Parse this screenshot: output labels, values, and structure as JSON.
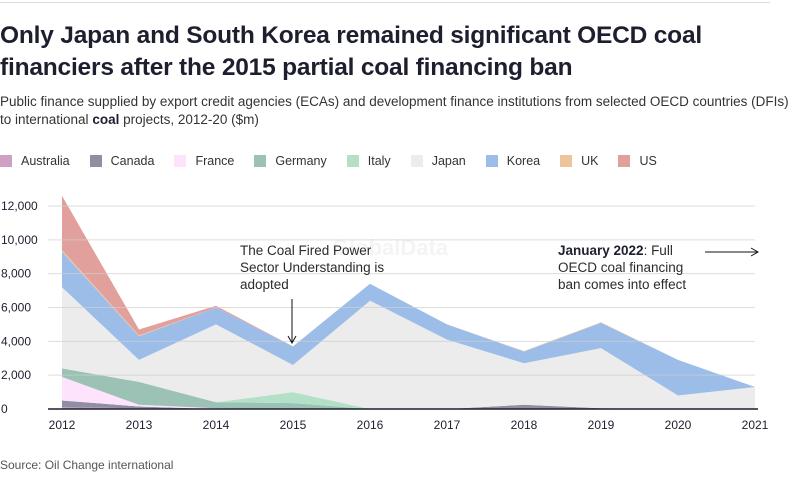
{
  "header": {
    "title": "Only Japan and South Korea remained significant OECD coal financiers after the 2015 partial coal financing ban",
    "subtitle_before": "Public finance supplied by export credit agencies (ECAs) and development finance institutions from selected OECD countries (DFIs) to international ",
    "subtitle_bold": "coal",
    "subtitle_after": " projects, 2012-20 ($m)"
  },
  "footer": {
    "source": "Source: Oil Change international"
  },
  "watermark": "GlobalData",
  "chart_data": {
    "type": "area",
    "stacked": true,
    "title": "Only Japan and South Korea remained significant OECD coal financiers after the 2015 partial coal financing ban",
    "xlabel": "",
    "ylabel": "$m",
    "x": [
      2012,
      2013,
      2014,
      2015,
      2016,
      2017,
      2018,
      2019,
      2020,
      2021
    ],
    "x_tick_labels": [
      "2012",
      "2013",
      "2014",
      "2015",
      "2016",
      "2017",
      "2018",
      "2019",
      "2020",
      "2021"
    ],
    "ylim": [
      0,
      12000
    ],
    "y_ticks": [
      0,
      2000,
      4000,
      6000,
      8000,
      10000,
      12000
    ],
    "y_tick_labels": [
      "0",
      "2,000",
      "4,000",
      "6,000",
      "8,000",
      "10,000",
      "12,000"
    ],
    "grid": true,
    "legend_position": "top-left",
    "series": [
      {
        "name": "Australia",
        "color": "#cf9fc4",
        "values": [
          100,
          50,
          0,
          0,
          0,
          0,
          0,
          0,
          0,
          0
        ]
      },
      {
        "name": "Canada",
        "color": "#8f8ea3",
        "values": [
          400,
          100,
          0,
          0,
          0,
          0,
          250,
          50,
          0,
          0
        ]
      },
      {
        "name": "France",
        "color": "#fde3fb",
        "values": [
          1400,
          100,
          50,
          0,
          0,
          0,
          0,
          0,
          0,
          0
        ]
      },
      {
        "name": "Germany",
        "color": "#9bc2b4",
        "values": [
          500,
          1350,
          350,
          350,
          0,
          0,
          0,
          0,
          0,
          0
        ]
      },
      {
        "name": "Italy",
        "color": "#b5e0c8",
        "values": [
          0,
          0,
          0,
          650,
          0,
          0,
          0,
          0,
          0,
          0
        ]
      },
      {
        "name": "Japan",
        "color": "#ececec",
        "values": [
          4800,
          1300,
          4600,
          1600,
          6400,
          4100,
          2450,
          3550,
          800,
          1300
        ]
      },
      {
        "name": "Korea",
        "color": "#9dbde9",
        "values": [
          2100,
          1400,
          1000,
          1100,
          1000,
          900,
          700,
          1500,
          2100,
          0
        ]
      },
      {
        "name": "UK",
        "color": "#eec49d",
        "values": [
          100,
          50,
          0,
          0,
          0,
          0,
          30,
          30,
          0,
          0
        ]
      },
      {
        "name": "US",
        "color": "#e1a09c",
        "values": [
          3200,
          350,
          100,
          0,
          0,
          0,
          0,
          0,
          0,
          0
        ]
      }
    ],
    "annotations": [
      {
        "id": "cfpsu",
        "lines": [
          "The Coal Fired Power",
          "Sector Understanding is",
          "adopted"
        ],
        "points_to_year": 2015
      },
      {
        "id": "ban2022",
        "bold": "January 2022",
        "rest_line1": ": Full",
        "lines_after": [
          "OECD coal financing",
          "ban comes into effect"
        ],
        "arrow": "right"
      }
    ]
  }
}
